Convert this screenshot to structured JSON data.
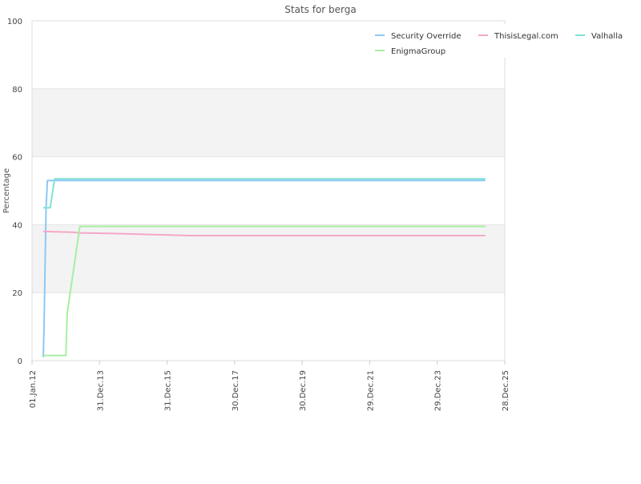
{
  "chart_data": {
    "type": "line",
    "title": "Stats for berga",
    "xlabel": "",
    "ylabel": "Percentage",
    "ylim": [
      0,
      100
    ],
    "xlim": [
      "2012-01-01",
      "2025-12-28"
    ],
    "yticks": [
      0,
      20,
      40,
      60,
      80,
      100
    ],
    "xticks": [
      "01.Jan.12",
      "31.Dec.13",
      "31.Dec.15",
      "30.Dec.17",
      "30.Dec.19",
      "29.Dec.21",
      "29.Dec.23",
      "28.Dec.25"
    ],
    "xtick_dates": [
      "2012-01-01",
      "2013-12-31",
      "2015-12-31",
      "2017-12-30",
      "2019-12-30",
      "2021-12-29",
      "2023-12-29",
      "2025-12-28"
    ],
    "grid": "horizontal alternating bands",
    "legend_position": "top-right",
    "series": [
      {
        "name": "Security Override",
        "color": "#8cc8f5",
        "points": [
          [
            "2012-05-01",
            1
          ],
          [
            "2012-05-10",
            10
          ],
          [
            "2012-05-20",
            27
          ],
          [
            "2012-06-01",
            45
          ],
          [
            "2012-06-15",
            53
          ],
          [
            "2025-06-01",
            53
          ]
        ]
      },
      {
        "name": "ThisisLegal.com",
        "color": "#f5a8c8",
        "points": [
          [
            "2012-05-01",
            38
          ],
          [
            "2013-03-01",
            37.8
          ],
          [
            "2013-06-01",
            37.6
          ],
          [
            "2014-06-01",
            37.4
          ],
          [
            "2015-08-01",
            37.1
          ],
          [
            "2016-09-01",
            36.8
          ],
          [
            "2025-06-01",
            36.8
          ]
        ]
      },
      {
        "name": "Valhalla",
        "color": "#7ee2d5",
        "points": [
          [
            "2012-05-01",
            45
          ],
          [
            "2012-07-15",
            45
          ],
          [
            "2012-09-01",
            53.5
          ],
          [
            "2025-06-01",
            53.5
          ]
        ]
      },
      {
        "name": "EnigmaGroup",
        "color": "#a6f0a0",
        "points": [
          [
            "2012-05-01",
            1.5
          ],
          [
            "2013-01-01",
            1.5
          ],
          [
            "2013-01-15",
            14
          ],
          [
            "2013-06-01",
            39.5
          ],
          [
            "2025-06-01",
            39.5
          ]
        ]
      }
    ]
  }
}
